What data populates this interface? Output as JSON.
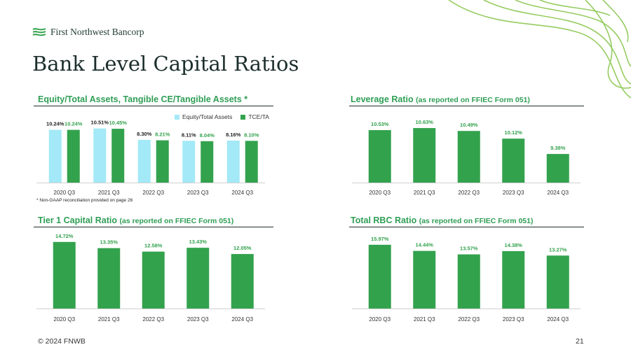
{
  "brand": {
    "name": "First Northwest Bancorp",
    "colors": {
      "green": "#33A24D",
      "light_blue": "#A3E9F7",
      "dark": "#1C2E2C",
      "decor": "#8BC750"
    }
  },
  "page": {
    "title": "Bank Level Capital Ratios",
    "footer_left": "© 2024 FNWB",
    "page_number": "21"
  },
  "chart_data": [
    {
      "id": "equity",
      "type": "bar",
      "title": "Equity/Total Assets, Tangible CE/Tangible Assets *",
      "categories": [
        "2020 Q3",
        "2021 Q3",
        "2022 Q3",
        "2023 Q3",
        "2024 Q3"
      ],
      "series": [
        {
          "name": "Equity/Total Assets",
          "values": [
            10.24,
            10.51,
            8.3,
            8.11,
            8.16
          ],
          "labels": [
            "10.24%",
            "10.51%",
            "8.30%",
            "8.11%",
            "8.16%"
          ],
          "color": "#A3E9F7"
        },
        {
          "name": "TCE/TA",
          "values": [
            10.24,
            10.45,
            8.21,
            8.04,
            8.1
          ],
          "labels": [
            "10.24%",
            "10.45%",
            "8.21%",
            "8.04%",
            "8.10%"
          ],
          "color": "#33A24D"
        }
      ],
      "legend": "top-right",
      "footnote": "* Non-GAAP reconciliation provided on page 26",
      "ylim": [
        0,
        11
      ]
    },
    {
      "id": "leverage",
      "type": "bar",
      "title": "Leverage Ratio",
      "title_suffix": "(as reported on FFIEC Form 051)",
      "categories": [
        "2020 Q3",
        "2021 Q3",
        "2022 Q3",
        "2023 Q3",
        "2024 Q3"
      ],
      "series": [
        {
          "values": [
            10.53,
            10.63,
            10.49,
            10.12,
            9.38
          ],
          "labels": [
            "10.53%",
            "10.63%",
            "10.49%",
            "10.12%",
            "9.38%"
          ],
          "color": "#33A24D"
        }
      ],
      "ylim": [
        8.0,
        10.8
      ]
    },
    {
      "id": "tier1",
      "type": "bar",
      "title": "Tier 1 Capital Ratio",
      "title_suffix": "(as reported on FFIEC Form 051)",
      "categories": [
        "2020 Q3",
        "2021 Q3",
        "2022 Q3",
        "2023 Q3",
        "2024 Q3"
      ],
      "series": [
        {
          "values": [
            14.72,
            13.35,
            12.58,
            13.43,
            12.05
          ],
          "labels": [
            "14.72%",
            "13.35%",
            "12.58%",
            "13.43%",
            "12.05%"
          ],
          "color": "#33A24D"
        }
      ],
      "ylim": [
        0,
        15
      ]
    },
    {
      "id": "rbc",
      "type": "bar",
      "title": "Total RBC Ratio",
      "title_suffix": "(as reported on FFIEC Form 051)",
      "categories": [
        "2020 Q3",
        "2021 Q3",
        "2022 Q3",
        "2023 Q3",
        "2024 Q3"
      ],
      "series": [
        {
          "values": [
            15.97,
            14.44,
            13.57,
            14.38,
            13.27
          ],
          "labels": [
            "15.97%",
            "14.44%",
            "13.57%",
            "14.38%",
            "13.27%"
          ],
          "color": "#33A24D"
        }
      ],
      "ylim": [
        0,
        16.3
      ]
    }
  ]
}
